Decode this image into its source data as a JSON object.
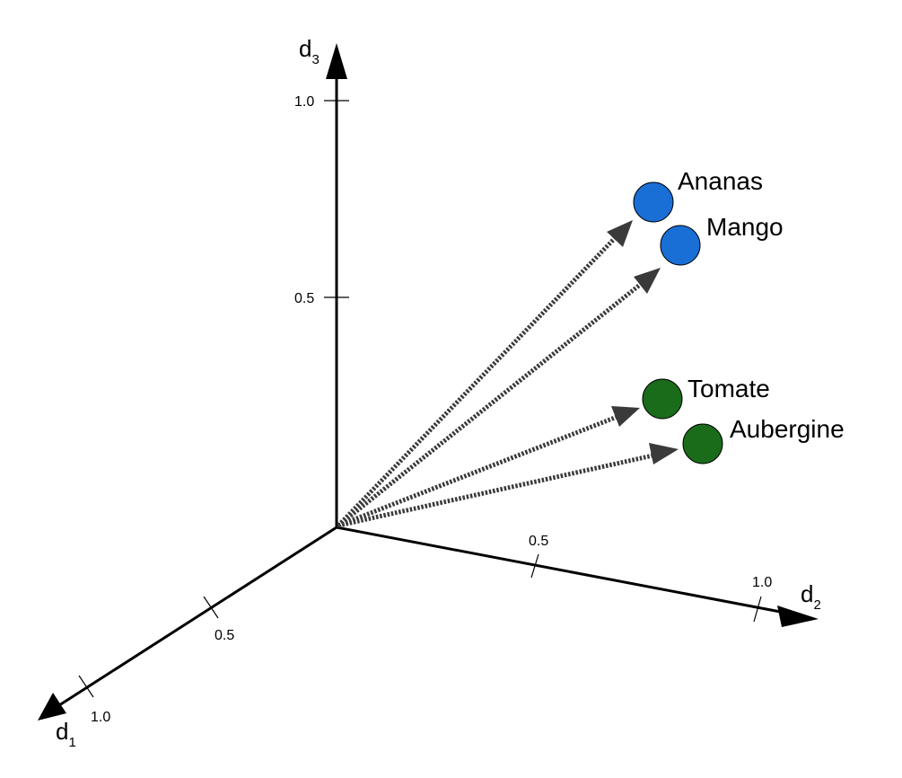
{
  "axes": {
    "d1": {
      "base": "d",
      "sub": "1"
    },
    "d2": {
      "base": "d",
      "sub": "2"
    },
    "d3": {
      "base": "d",
      "sub": "3"
    }
  },
  "ticks": {
    "d1": [
      "0.5",
      "1.0"
    ],
    "d2": [
      "0.5",
      "1.0"
    ],
    "d3": [
      "0.5",
      "1.0"
    ]
  },
  "colors": {
    "fruit": "#1a6fd6",
    "vegetable": "#1a6b1a",
    "arrow": "#3a3a3a",
    "axis": "#000000"
  },
  "points": [
    {
      "label": "Ananas",
      "group": "fruit"
    },
    {
      "label": "Mango",
      "group": "fruit"
    },
    {
      "label": "Tomate",
      "group": "vegetable"
    },
    {
      "label": "Aubergine",
      "group": "vegetable"
    }
  ]
}
